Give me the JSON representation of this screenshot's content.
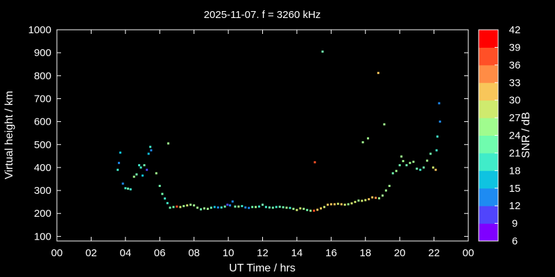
{
  "chart_data": {
    "type": "scatter",
    "title": "2025-11-07. f = 3260 kHz",
    "xlabel": "UT Time / hrs",
    "ylabel": "Virtual height / km",
    "xlim": [
      0,
      24
    ],
    "ylim": [
      80,
      1000
    ],
    "x_ticks": [
      "00",
      "02",
      "04",
      "06",
      "08",
      "10",
      "12",
      "14",
      "16",
      "18",
      "20",
      "22",
      "00"
    ],
    "y_ticks": [
      "100",
      "200",
      "300",
      "400",
      "500",
      "600",
      "700",
      "800",
      "900",
      "1000"
    ],
    "grid": false,
    "colorbar": {
      "label": "SNR / dB",
      "range": [
        6,
        42
      ],
      "ticks": [
        "6",
        "9",
        "12",
        "15",
        "18",
        "21",
        "24",
        "27",
        "30",
        "33",
        "36",
        "39",
        "42"
      ],
      "colors": [
        "#7f00ff",
        "#5045fc",
        "#1e8bf2",
        "#0fc3e1",
        "#40ecc9",
        "#70fcae",
        "#a0fc8e",
        "#cfea6e",
        "#f8c65a",
        "#ff8c45",
        "#ff5027",
        "#ff0000"
      ]
    },
    "series": [
      {
        "points": [
          {
            "x": 3.55,
            "y": 390,
            "snr": 20
          },
          {
            "x": 3.62,
            "y": 420,
            "snr": 14
          },
          {
            "x": 3.7,
            "y": 465,
            "snr": 16
          },
          {
            "x": 3.85,
            "y": 330,
            "snr": 14
          },
          {
            "x": 4.0,
            "y": 310,
            "snr": 20
          },
          {
            "x": 4.15,
            "y": 308,
            "snr": 21
          },
          {
            "x": 4.3,
            "y": 305,
            "snr": 20
          },
          {
            "x": 4.5,
            "y": 360,
            "snr": 24
          },
          {
            "x": 4.65,
            "y": 370,
            "snr": 22
          },
          {
            "x": 4.8,
            "y": 410,
            "snr": 20
          },
          {
            "x": 4.9,
            "y": 400,
            "snr": 19
          },
          {
            "x": 5.0,
            "y": 365,
            "snr": 15
          },
          {
            "x": 5.1,
            "y": 410,
            "snr": 22
          },
          {
            "x": 5.25,
            "y": 390,
            "snr": 10
          },
          {
            "x": 5.35,
            "y": 460,
            "snr": 15
          },
          {
            "x": 5.45,
            "y": 490,
            "snr": 18
          },
          {
            "x": 5.5,
            "y": 475,
            "snr": 14
          },
          {
            "x": 5.8,
            "y": 375,
            "snr": 24
          },
          {
            "x": 6.0,
            "y": 320,
            "snr": 22
          },
          {
            "x": 6.15,
            "y": 285,
            "snr": 21
          },
          {
            "x": 6.3,
            "y": 265,
            "snr": 19
          },
          {
            "x": 6.45,
            "y": 245,
            "snr": 18
          },
          {
            "x": 6.5,
            "y": 505,
            "snr": 24
          },
          {
            "x": 6.6,
            "y": 225,
            "snr": 22
          },
          {
            "x": 6.8,
            "y": 228,
            "snr": 22
          },
          {
            "x": 7.0,
            "y": 230,
            "snr": 36
          },
          {
            "x": 7.2,
            "y": 228,
            "snr": 27
          },
          {
            "x": 7.4,
            "y": 232,
            "snr": 24
          },
          {
            "x": 7.6,
            "y": 235,
            "snr": 27
          },
          {
            "x": 7.8,
            "y": 238,
            "snr": 24
          },
          {
            "x": 8.0,
            "y": 235,
            "snr": 26
          },
          {
            "x": 8.2,
            "y": 225,
            "snr": 24
          },
          {
            "x": 8.4,
            "y": 218,
            "snr": 22
          },
          {
            "x": 8.6,
            "y": 222,
            "snr": 24
          },
          {
            "x": 8.8,
            "y": 220,
            "snr": 26
          },
          {
            "x": 9.0,
            "y": 225,
            "snr": 21
          },
          {
            "x": 9.2,
            "y": 228,
            "snr": 16
          },
          {
            "x": 9.4,
            "y": 226,
            "snr": 14
          },
          {
            "x": 9.6,
            "y": 226,
            "snr": 18
          },
          {
            "x": 9.8,
            "y": 230,
            "snr": 22
          },
          {
            "x": 9.95,
            "y": 238,
            "snr": 9
          },
          {
            "x": 10.1,
            "y": 235,
            "snr": 12
          },
          {
            "x": 10.25,
            "y": 252,
            "snr": 12
          },
          {
            "x": 10.4,
            "y": 230,
            "snr": 22
          },
          {
            "x": 10.6,
            "y": 230,
            "snr": 24
          },
          {
            "x": 10.8,
            "y": 232,
            "snr": 20
          },
          {
            "x": 11.0,
            "y": 226,
            "snr": 14
          },
          {
            "x": 11.2,
            "y": 224,
            "snr": 13
          },
          {
            "x": 11.4,
            "y": 228,
            "snr": 22
          },
          {
            "x": 11.6,
            "y": 228,
            "snr": 24
          },
          {
            "x": 11.8,
            "y": 230,
            "snr": 20
          },
          {
            "x": 12.0,
            "y": 238,
            "snr": 21
          },
          {
            "x": 12.2,
            "y": 228,
            "snr": 18
          },
          {
            "x": 12.4,
            "y": 226,
            "snr": 21
          },
          {
            "x": 12.6,
            "y": 225,
            "snr": 22
          },
          {
            "x": 12.8,
            "y": 228,
            "snr": 20
          },
          {
            "x": 13.0,
            "y": 229,
            "snr": 22
          },
          {
            "x": 13.2,
            "y": 227,
            "snr": 21
          },
          {
            "x": 13.4,
            "y": 225,
            "snr": 24
          },
          {
            "x": 13.6,
            "y": 224,
            "snr": 20
          },
          {
            "x": 13.8,
            "y": 220,
            "snr": 24
          },
          {
            "x": 14.0,
            "y": 215,
            "snr": 27
          },
          {
            "x": 14.2,
            "y": 222,
            "snr": 28
          },
          {
            "x": 14.4,
            "y": 220,
            "snr": 24
          },
          {
            "x": 14.6,
            "y": 215,
            "snr": 22
          },
          {
            "x": 14.8,
            "y": 212,
            "snr": 24
          },
          {
            "x": 15.0,
            "y": 212,
            "snr": 38
          },
          {
            "x": 15.05,
            "y": 423,
            "snr": 36
          },
          {
            "x": 15.2,
            "y": 216,
            "snr": 32
          },
          {
            "x": 15.4,
            "y": 222,
            "snr": 30
          },
          {
            "x": 15.5,
            "y": 905,
            "snr": 22
          },
          {
            "x": 15.6,
            "y": 228,
            "snr": 28
          },
          {
            "x": 15.8,
            "y": 238,
            "snr": 30
          },
          {
            "x": 16.0,
            "y": 240,
            "snr": 32
          },
          {
            "x": 16.2,
            "y": 240,
            "snr": 30
          },
          {
            "x": 16.4,
            "y": 242,
            "snr": 28
          },
          {
            "x": 16.6,
            "y": 240,
            "snr": 30
          },
          {
            "x": 16.8,
            "y": 238,
            "snr": 27
          },
          {
            "x": 17.0,
            "y": 240,
            "snr": 24
          },
          {
            "x": 17.2,
            "y": 244,
            "snr": 27
          },
          {
            "x": 17.4,
            "y": 250,
            "snr": 28
          },
          {
            "x": 17.6,
            "y": 256,
            "snr": 26
          },
          {
            "x": 17.8,
            "y": 255,
            "snr": 28
          },
          {
            "x": 17.85,
            "y": 510,
            "snr": 24
          },
          {
            "x": 18.0,
            "y": 258,
            "snr": 28
          },
          {
            "x": 18.15,
            "y": 527,
            "snr": 24
          },
          {
            "x": 18.2,
            "y": 262,
            "snr": 30
          },
          {
            "x": 18.4,
            "y": 270,
            "snr": 32
          },
          {
            "x": 18.6,
            "y": 268,
            "snr": 34
          },
          {
            "x": 18.75,
            "y": 812,
            "snr": 30
          },
          {
            "x": 18.8,
            "y": 266,
            "snr": 24
          },
          {
            "x": 19.0,
            "y": 278,
            "snr": 26
          },
          {
            "x": 19.1,
            "y": 588,
            "snr": 24
          },
          {
            "x": 19.2,
            "y": 300,
            "snr": 26
          },
          {
            "x": 19.4,
            "y": 320,
            "snr": 24
          },
          {
            "x": 19.6,
            "y": 375,
            "snr": 22
          },
          {
            "x": 19.8,
            "y": 385,
            "snr": 24
          },
          {
            "x": 20.0,
            "y": 410,
            "snr": 22
          },
          {
            "x": 20.1,
            "y": 448,
            "snr": 26
          },
          {
            "x": 20.2,
            "y": 428,
            "snr": 24
          },
          {
            "x": 20.4,
            "y": 410,
            "snr": 22
          },
          {
            "x": 20.6,
            "y": 420,
            "snr": 24
          },
          {
            "x": 20.8,
            "y": 425,
            "snr": 24
          },
          {
            "x": 21.0,
            "y": 395,
            "snr": 22
          },
          {
            "x": 21.2,
            "y": 390,
            "snr": 20
          },
          {
            "x": 21.4,
            "y": 400,
            "snr": 22
          },
          {
            "x": 21.6,
            "y": 430,
            "snr": 24
          },
          {
            "x": 21.8,
            "y": 460,
            "snr": 22
          },
          {
            "x": 21.95,
            "y": 400,
            "snr": 28
          },
          {
            "x": 22.1,
            "y": 390,
            "snr": 30
          },
          {
            "x": 22.15,
            "y": 475,
            "snr": 20
          },
          {
            "x": 22.2,
            "y": 535,
            "snr": 18
          },
          {
            "x": 22.3,
            "y": 680,
            "snr": 14
          },
          {
            "x": 22.35,
            "y": 600,
            "snr": 13
          }
        ]
      }
    ]
  }
}
